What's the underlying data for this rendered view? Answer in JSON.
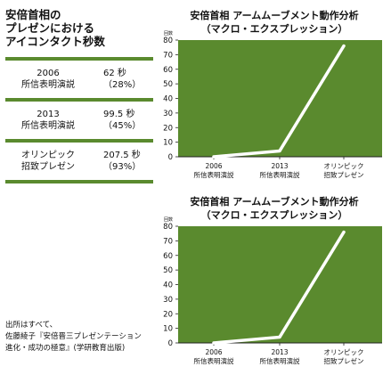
{
  "eye_contact_table": {
    "title_lines": [
      "安倍首相の",
      "プレゼンにおける",
      "アイコンタクト秒数"
    ],
    "rows": [
      {
        "event_lines": [
          "2006",
          "所信表明演説"
        ],
        "value": "62 秒",
        "percent": "（28%）"
      },
      {
        "event_lines": [
          "2013",
          "所信表明演説"
        ],
        "value": "99.5 秒",
        "percent": "（45%）"
      },
      {
        "event_lines": [
          "オリンピック",
          "招致プレゼン"
        ],
        "value": "207.5 秒",
        "percent": "（93%）"
      }
    ]
  },
  "source_lines": [
    "出所はすべて、",
    "佐藤綾子『安倍晋三プレゼンテーション",
    "進化・成功の極意』(学研教育出版)"
  ],
  "colors": {
    "plot_bg": "#5a8a2e",
    "line": "#ffffff",
    "axis": "#222222",
    "rule": "#5a8a2e"
  },
  "chart_data": [
    {
      "type": "line",
      "title_lines": [
        "安倍首相 アームムーブメント動作分析",
        "（マクロ・エクスプレッション）"
      ],
      "unit_label": "回数",
      "categories": [
        [
          "2006",
          "所信表明演説"
        ],
        [
          "2013",
          "所信表明演説"
        ],
        [
          "オリンピック",
          "招致プレゼン"
        ]
      ],
      "series": [
        {
          "values": [
            0,
            4,
            76
          ]
        }
      ],
      "ylim": [
        0,
        80
      ],
      "yticks": [
        "0",
        "10",
        "20",
        "30",
        "40",
        "50",
        "60",
        "70",
        "80"
      ],
      "grid": false
    },
    {
      "type": "line",
      "title_lines": [
        "安倍首相 アームムーブメント動作分析",
        "（マクロ・エクスプレッション）"
      ],
      "unit_label": "回数",
      "categories": [
        [
          "2006",
          "所信表明演説"
        ],
        [
          "2013",
          "所信表明演説"
        ],
        [
          "オリンピック",
          "招致プレゼン"
        ]
      ],
      "series": [
        {
          "values": [
            0,
            4,
            76
          ]
        }
      ],
      "ylim": [
        0,
        80
      ],
      "yticks": [
        "0",
        "10",
        "20",
        "30",
        "40",
        "50",
        "60",
        "70",
        "80"
      ],
      "grid": false
    }
  ]
}
